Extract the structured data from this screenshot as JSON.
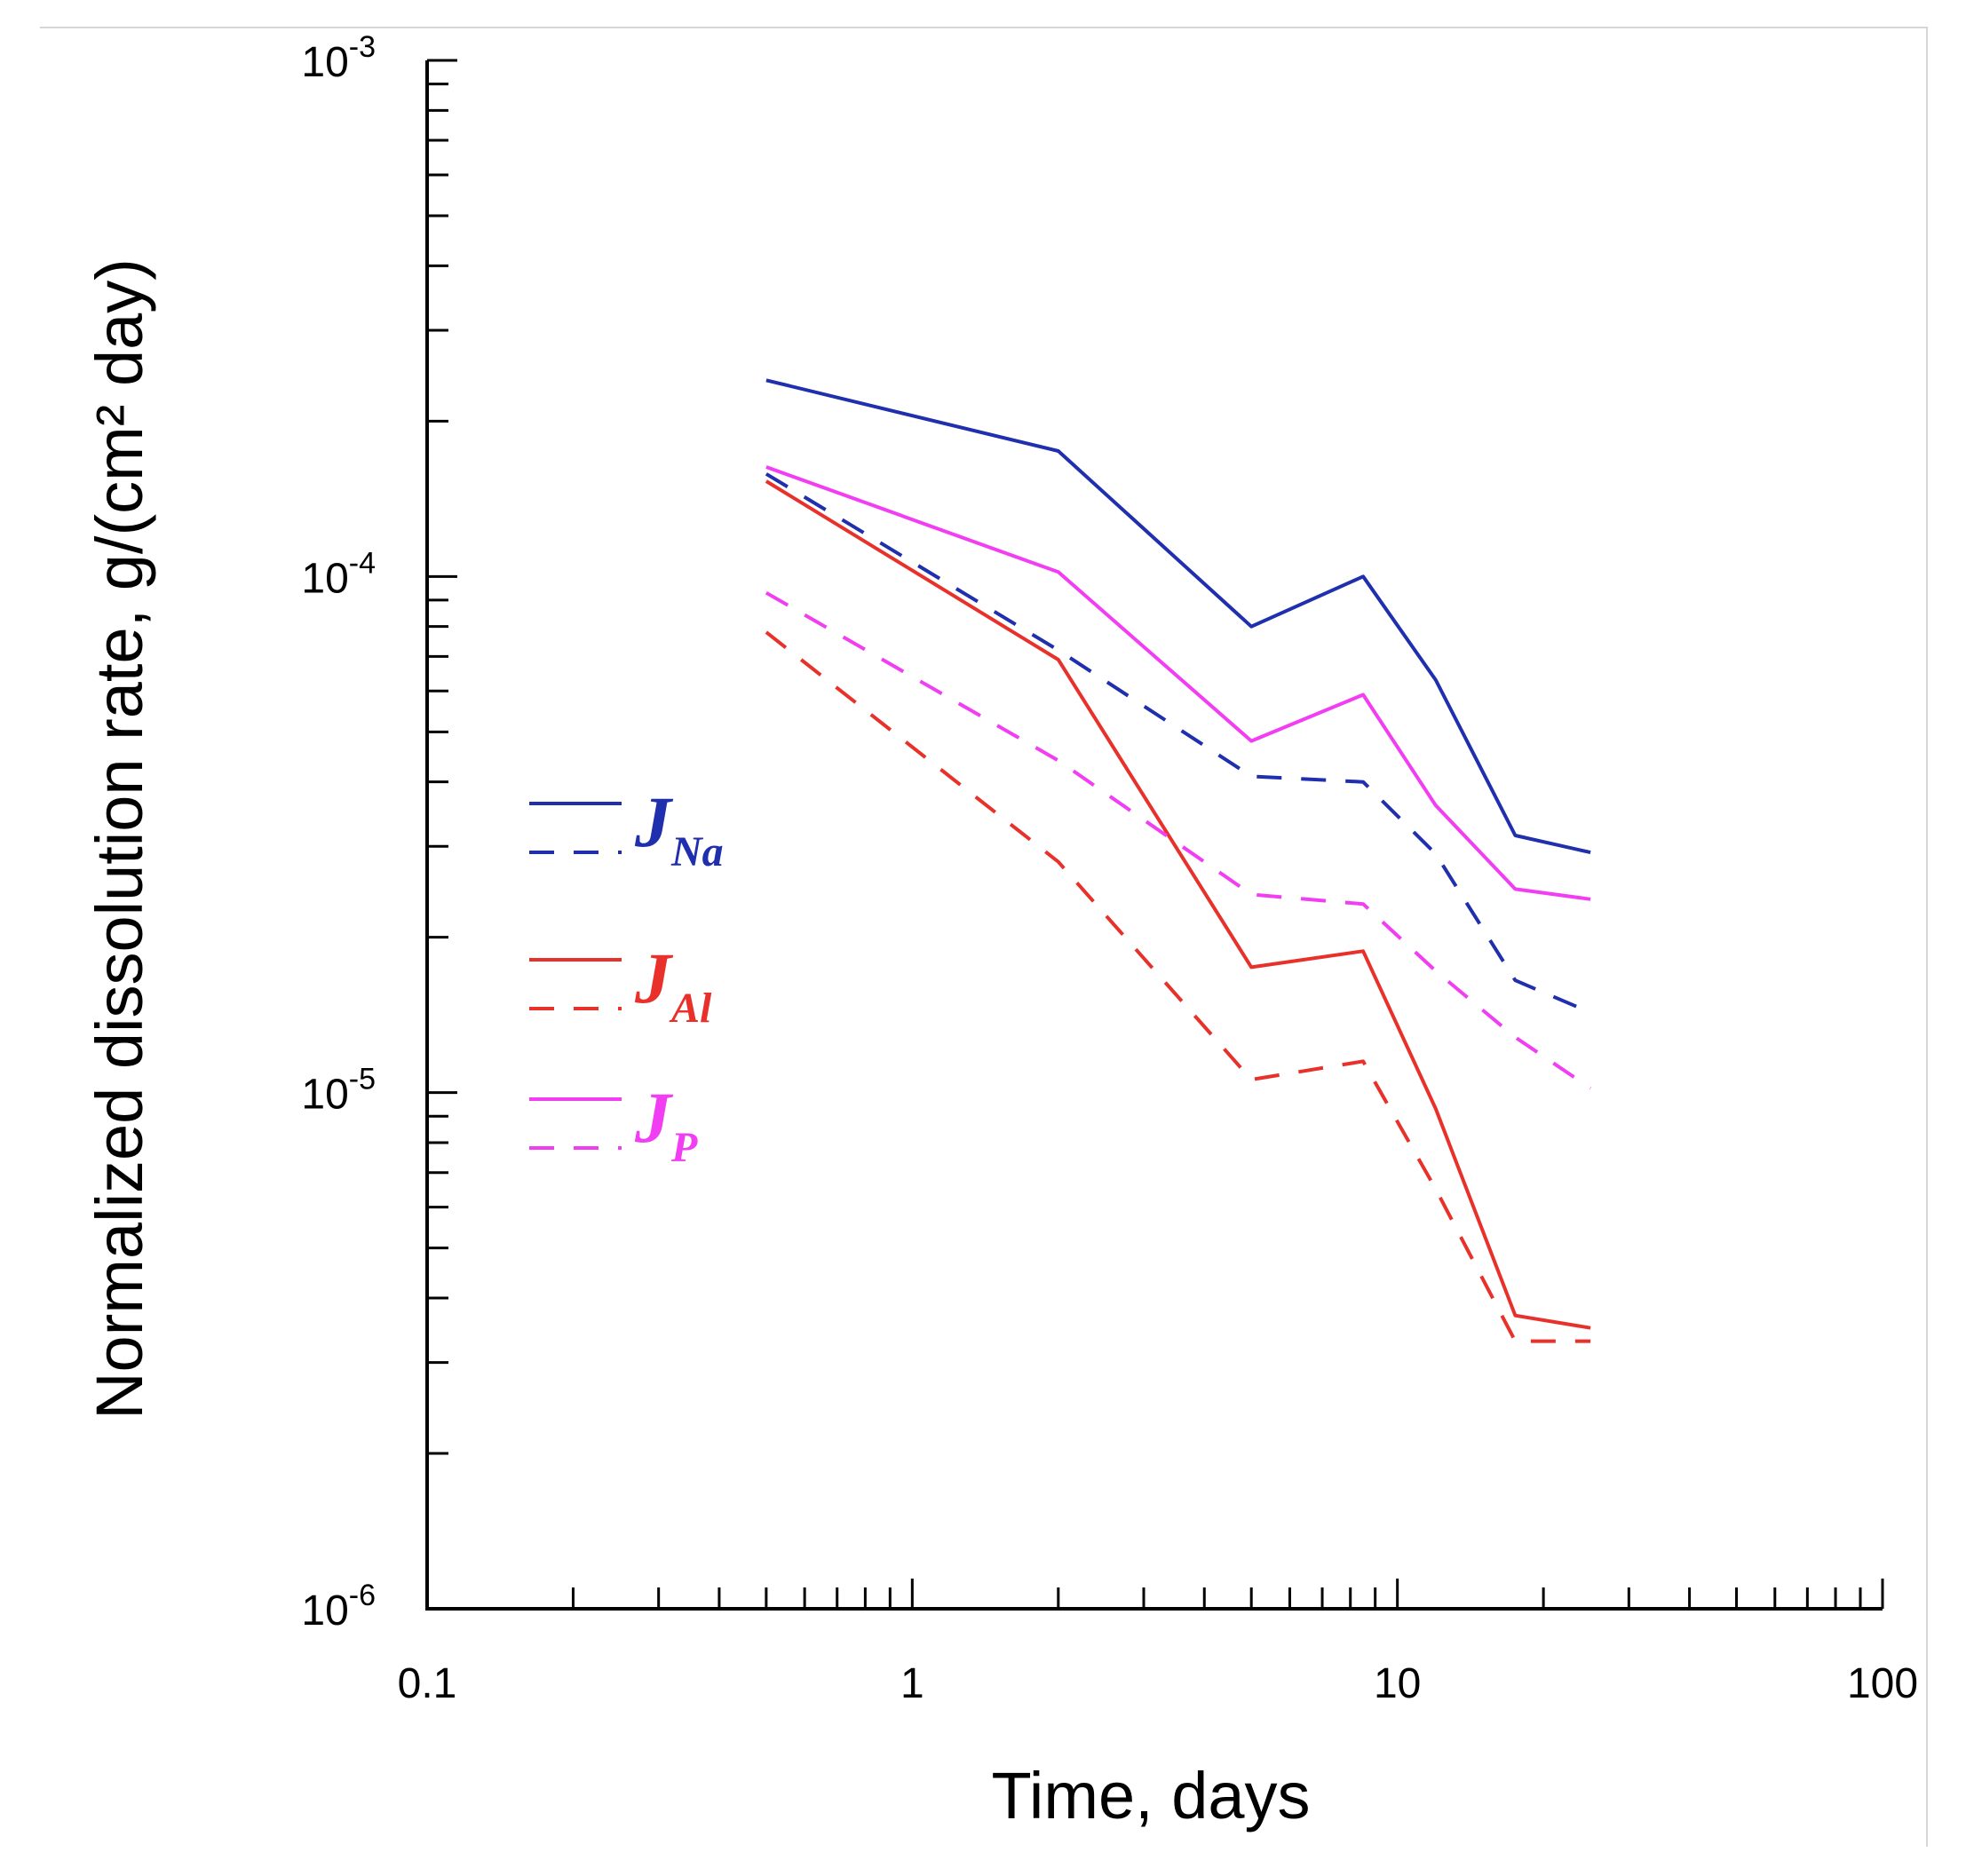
{
  "chart_data": {
    "type": "line",
    "title": "",
    "xlabel": "Time, days",
    "ylabel": "Normalized dissolution rate, g/(cm² day)",
    "x_scale": "log",
    "y_scale": "log",
    "xlim": [
      0.1,
      100
    ],
    "ylim": [
      1e-06,
      0.001
    ],
    "x_ticks": [
      {
        "value": 0.1,
        "label": "0.1"
      },
      {
        "value": 1,
        "label": "1"
      },
      {
        "value": 10,
        "label": "10"
      },
      {
        "value": 100,
        "label": "100"
      }
    ],
    "y_ticks": [
      {
        "value": 1e-06,
        "base": "10",
        "exp": "-6"
      },
      {
        "value": 1e-05,
        "base": "10",
        "exp": "-5"
      },
      {
        "value": 0.0001,
        "base": "10",
        "exp": "-4"
      },
      {
        "value": 0.001,
        "base": "10",
        "exp": "-3"
      }
    ],
    "grid": false,
    "legend_position": "center-left",
    "series": [
      {
        "name": "J_Na solid",
        "color": "#1f2fae",
        "dash": false,
        "x": [
          0.5,
          2,
          5,
          8.5,
          12,
          17.5,
          25
        ],
        "y": [
          0.00024,
          0.000175,
          8e-05,
          0.0001,
          6.3e-05,
          3.15e-05,
          2.92e-05
        ]
      },
      {
        "name": "J_Na dashed",
        "color": "#1f2fae",
        "dash": true,
        "x": [
          0.5,
          2,
          5,
          8.5,
          12,
          17.5,
          25
        ],
        "y": [
          0.000158,
          7.2e-05,
          4.1e-05,
          4e-05,
          2.9e-05,
          1.65e-05,
          1.43e-05
        ]
      },
      {
        "name": "J_Al solid",
        "color": "#e8312a",
        "dash": false,
        "x": [
          0.5,
          2,
          5,
          8.5,
          12,
          17.5,
          25
        ],
        "y": [
          0.000153,
          6.9e-05,
          1.75e-05,
          1.88e-05,
          9.3e-06,
          3.7e-06,
          3.5e-06
        ]
      },
      {
        "name": "J_Al dashed",
        "color": "#e8312a",
        "dash": true,
        "x": [
          0.5,
          2,
          5,
          8.5,
          12,
          17.5,
          25
        ],
        "y": [
          7.8e-05,
          2.8e-05,
          1.06e-05,
          1.15e-05,
          6.5e-06,
          3.3e-06,
          3.3e-06
        ]
      },
      {
        "name": "J_P solid",
        "color": "#f23ef2",
        "dash": false,
        "x": [
          0.5,
          2,
          5,
          8.5,
          12,
          17.5,
          25
        ],
        "y": [
          0.000163,
          0.000102,
          4.8e-05,
          5.9e-05,
          3.6e-05,
          2.48e-05,
          2.37e-05
        ]
      },
      {
        "name": "J_P dashed",
        "color": "#f23ef2",
        "dash": true,
        "x": [
          0.5,
          2,
          5,
          8.5,
          12,
          17.5,
          25
        ],
        "y": [
          9.3e-05,
          4.4e-05,
          2.42e-05,
          2.32e-05,
          1.72e-05,
          1.28e-05,
          1.02e-05
        ]
      }
    ],
    "legend": [
      {
        "symbol": "J",
        "subscript": "Na",
        "color": "#1f2fae"
      },
      {
        "symbol": "J",
        "subscript": "Al",
        "color": "#e8312a"
      },
      {
        "symbol": "J",
        "subscript": "P",
        "color": "#f23ef2"
      }
    ]
  }
}
